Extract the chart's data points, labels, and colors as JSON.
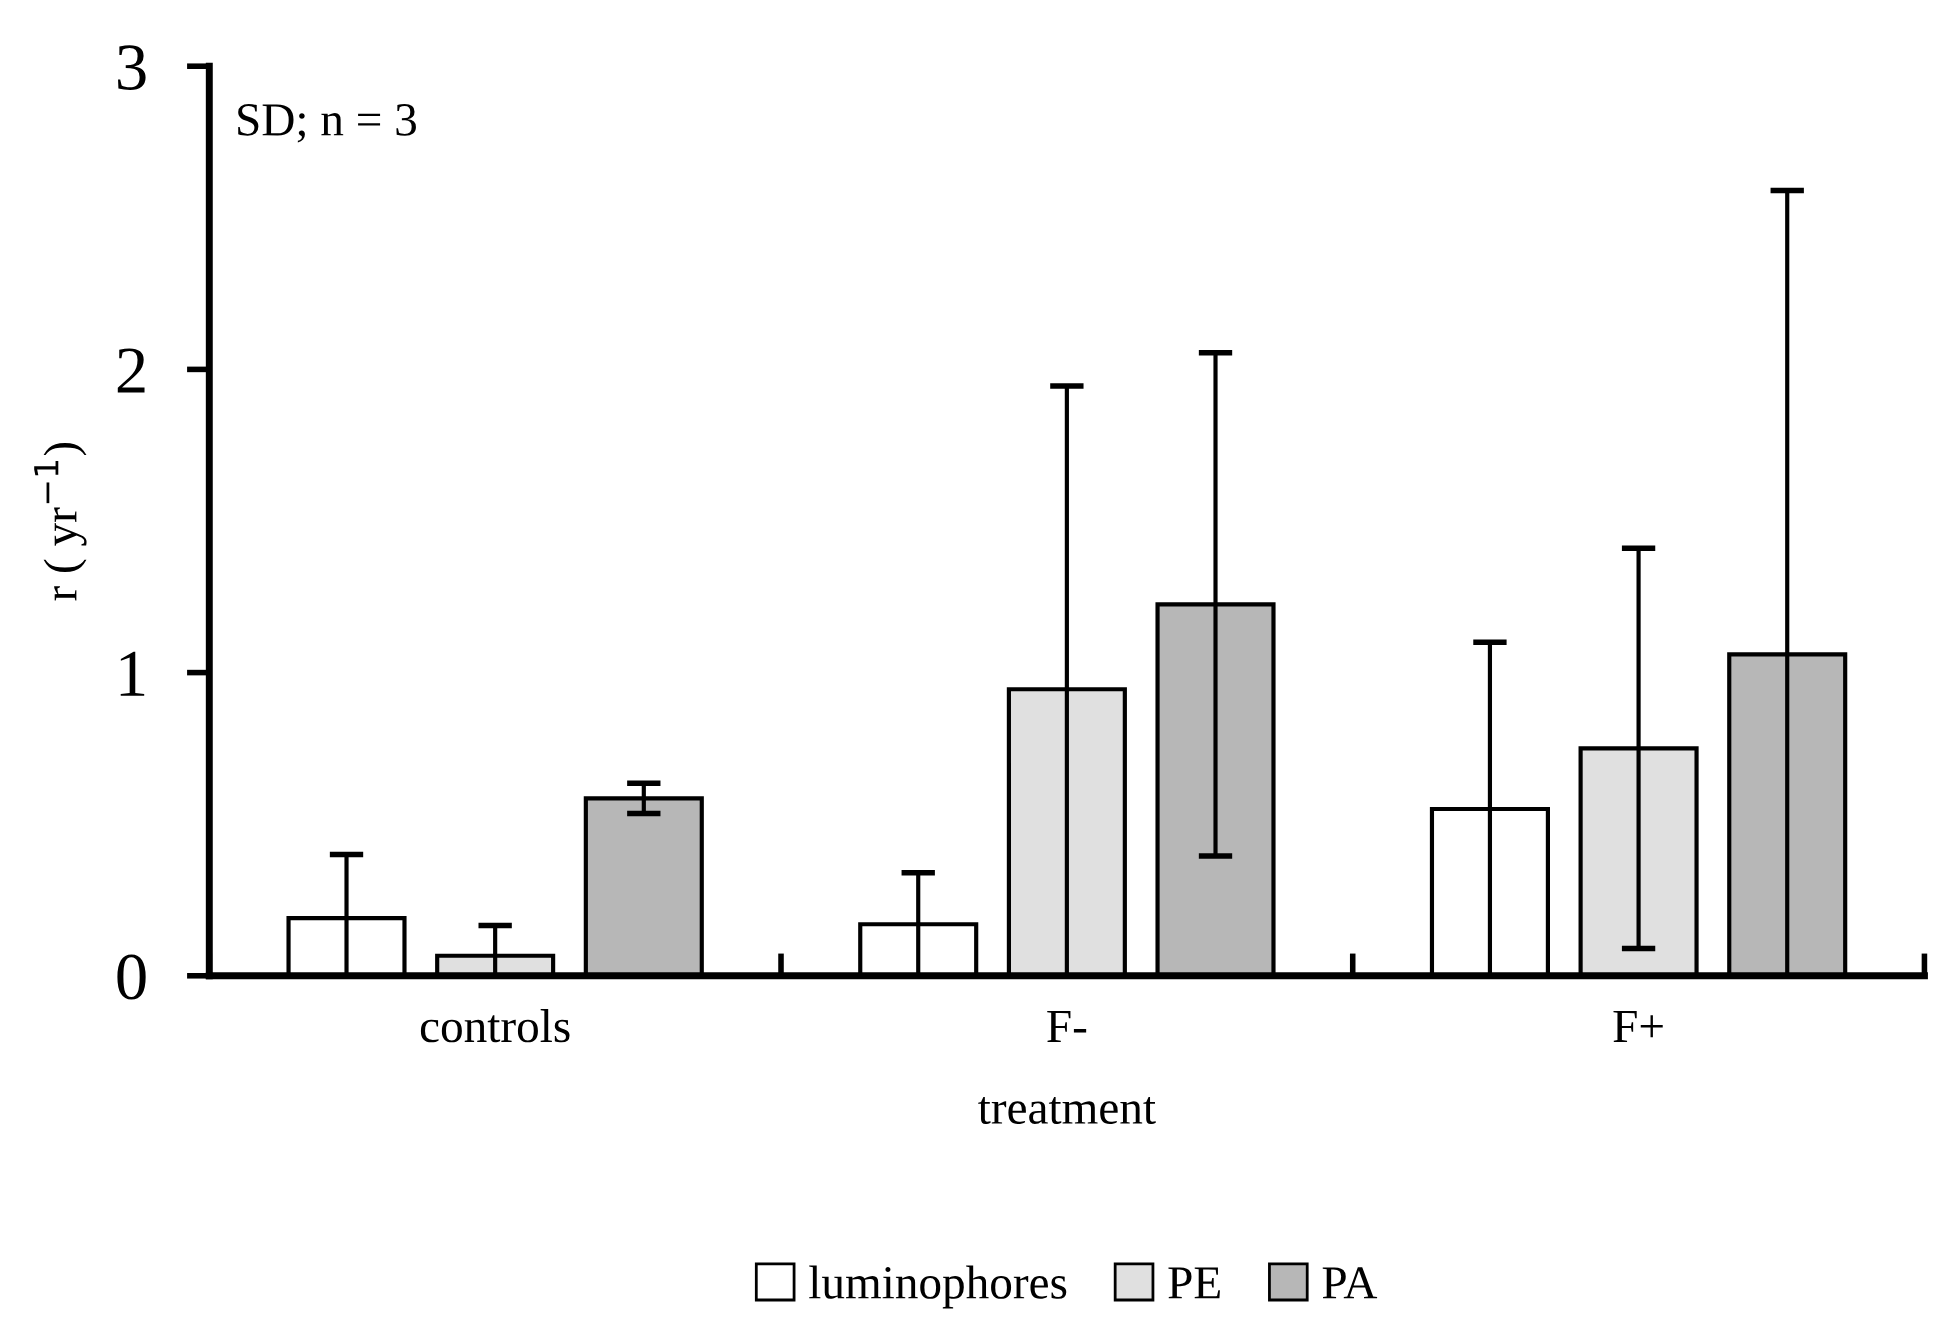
{
  "chart_data": {
    "type": "bar",
    "xlabel": "treatment",
    "ylabel": "r ( yr$^{−1}$)",
    "categories": [
      "controls",
      "F-",
      "F+"
    ],
    "series": [
      {
        "name": "luminophores",
        "color": "#ffffff",
        "values": [
          0.19,
          0.17,
          0.55
        ],
        "errors": [
          0.21,
          0.17,
          0.55
        ]
      },
      {
        "name": "PE",
        "color": "#e0e0e0",
        "values": [
          0.066,
          0.945,
          0.75
        ],
        "errors": [
          0.1,
          1.0,
          0.66
        ]
      },
      {
        "name": "PA",
        "color": "#b7b7b7",
        "values": [
          0.585,
          1.225,
          1.06
        ],
        "errors": [
          0.05,
          0.83,
          1.53
        ]
      }
    ],
    "ylim": [
      0,
      3
    ],
    "yticks": [
      0,
      1,
      2,
      3
    ],
    "grid": false,
    "legend": "bottom",
    "annotations": [
      "SD; n = 3"
    ]
  }
}
